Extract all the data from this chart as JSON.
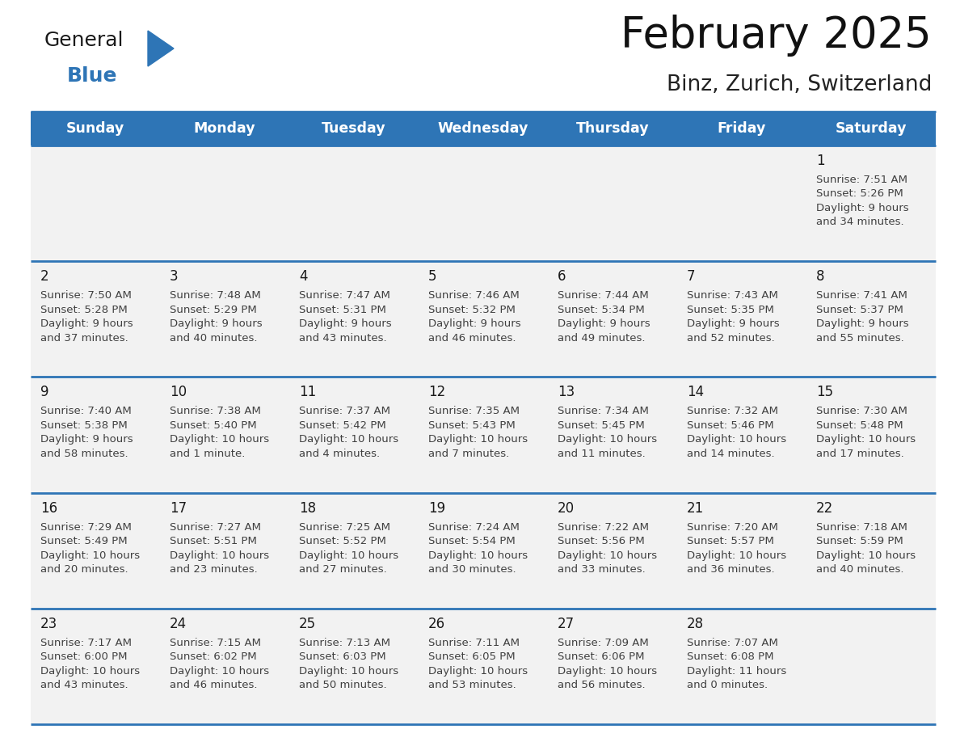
{
  "title": "February 2025",
  "subtitle": "Binz, Zurich, Switzerland",
  "header_bg": "#2e75b6",
  "header_text_color": "#ffffff",
  "days_of_week": [
    "Sunday",
    "Monday",
    "Tuesday",
    "Wednesday",
    "Thursday",
    "Friday",
    "Saturday"
  ],
  "cell_bg_light": "#f2f2f2",
  "cell_bg_white": "#ffffff",
  "cell_border_color": "#2e75b6",
  "text_color": "#404040",
  "logo_general_color": "#1a1a1a",
  "logo_blue_color": "#2e75b6",
  "calendar_data": [
    [
      null,
      null,
      null,
      null,
      null,
      null,
      1
    ],
    [
      2,
      3,
      4,
      5,
      6,
      7,
      8
    ],
    [
      9,
      10,
      11,
      12,
      13,
      14,
      15
    ],
    [
      16,
      17,
      18,
      19,
      20,
      21,
      22
    ],
    [
      23,
      24,
      25,
      26,
      27,
      28,
      null
    ]
  ],
  "day_info": {
    "1": {
      "sunrise": "7:51 AM",
      "sunset": "5:26 PM",
      "daylight_line1": "Daylight: 9 hours",
      "daylight_line2": "and 34 minutes."
    },
    "2": {
      "sunrise": "7:50 AM",
      "sunset": "5:28 PM",
      "daylight_line1": "Daylight: 9 hours",
      "daylight_line2": "and 37 minutes."
    },
    "3": {
      "sunrise": "7:48 AM",
      "sunset": "5:29 PM",
      "daylight_line1": "Daylight: 9 hours",
      "daylight_line2": "and 40 minutes."
    },
    "4": {
      "sunrise": "7:47 AM",
      "sunset": "5:31 PM",
      "daylight_line1": "Daylight: 9 hours",
      "daylight_line2": "and 43 minutes."
    },
    "5": {
      "sunrise": "7:46 AM",
      "sunset": "5:32 PM",
      "daylight_line1": "Daylight: 9 hours",
      "daylight_line2": "and 46 minutes."
    },
    "6": {
      "sunrise": "7:44 AM",
      "sunset": "5:34 PM",
      "daylight_line1": "Daylight: 9 hours",
      "daylight_line2": "and 49 minutes."
    },
    "7": {
      "sunrise": "7:43 AM",
      "sunset": "5:35 PM",
      "daylight_line1": "Daylight: 9 hours",
      "daylight_line2": "and 52 minutes."
    },
    "8": {
      "sunrise": "7:41 AM",
      "sunset": "5:37 PM",
      "daylight_line1": "Daylight: 9 hours",
      "daylight_line2": "and 55 minutes."
    },
    "9": {
      "sunrise": "7:40 AM",
      "sunset": "5:38 PM",
      "daylight_line1": "Daylight: 9 hours",
      "daylight_line2": "and 58 minutes."
    },
    "10": {
      "sunrise": "7:38 AM",
      "sunset": "5:40 PM",
      "daylight_line1": "Daylight: 10 hours",
      "daylight_line2": "and 1 minute."
    },
    "11": {
      "sunrise": "7:37 AM",
      "sunset": "5:42 PM",
      "daylight_line1": "Daylight: 10 hours",
      "daylight_line2": "and 4 minutes."
    },
    "12": {
      "sunrise": "7:35 AM",
      "sunset": "5:43 PM",
      "daylight_line1": "Daylight: 10 hours",
      "daylight_line2": "and 7 minutes."
    },
    "13": {
      "sunrise": "7:34 AM",
      "sunset": "5:45 PM",
      "daylight_line1": "Daylight: 10 hours",
      "daylight_line2": "and 11 minutes."
    },
    "14": {
      "sunrise": "7:32 AM",
      "sunset": "5:46 PM",
      "daylight_line1": "Daylight: 10 hours",
      "daylight_line2": "and 14 minutes."
    },
    "15": {
      "sunrise": "7:30 AM",
      "sunset": "5:48 PM",
      "daylight_line1": "Daylight: 10 hours",
      "daylight_line2": "and 17 minutes."
    },
    "16": {
      "sunrise": "7:29 AM",
      "sunset": "5:49 PM",
      "daylight_line1": "Daylight: 10 hours",
      "daylight_line2": "and 20 minutes."
    },
    "17": {
      "sunrise": "7:27 AM",
      "sunset": "5:51 PM",
      "daylight_line1": "Daylight: 10 hours",
      "daylight_line2": "and 23 minutes."
    },
    "18": {
      "sunrise": "7:25 AM",
      "sunset": "5:52 PM",
      "daylight_line1": "Daylight: 10 hours",
      "daylight_line2": "and 27 minutes."
    },
    "19": {
      "sunrise": "7:24 AM",
      "sunset": "5:54 PM",
      "daylight_line1": "Daylight: 10 hours",
      "daylight_line2": "and 30 minutes."
    },
    "20": {
      "sunrise": "7:22 AM",
      "sunset": "5:56 PM",
      "daylight_line1": "Daylight: 10 hours",
      "daylight_line2": "and 33 minutes."
    },
    "21": {
      "sunrise": "7:20 AM",
      "sunset": "5:57 PM",
      "daylight_line1": "Daylight: 10 hours",
      "daylight_line2": "and 36 minutes."
    },
    "22": {
      "sunrise": "7:18 AM",
      "sunset": "5:59 PM",
      "daylight_line1": "Daylight: 10 hours",
      "daylight_line2": "and 40 minutes."
    },
    "23": {
      "sunrise": "7:17 AM",
      "sunset": "6:00 PM",
      "daylight_line1": "Daylight: 10 hours",
      "daylight_line2": "and 43 minutes."
    },
    "24": {
      "sunrise": "7:15 AM",
      "sunset": "6:02 PM",
      "daylight_line1": "Daylight: 10 hours",
      "daylight_line2": "and 46 minutes."
    },
    "25": {
      "sunrise": "7:13 AM",
      "sunset": "6:03 PM",
      "daylight_line1": "Daylight: 10 hours",
      "daylight_line2": "and 50 minutes."
    },
    "26": {
      "sunrise": "7:11 AM",
      "sunset": "6:05 PM",
      "daylight_line1": "Daylight: 10 hours",
      "daylight_line2": "and 53 minutes."
    },
    "27": {
      "sunrise": "7:09 AM",
      "sunset": "6:06 PM",
      "daylight_line1": "Daylight: 10 hours",
      "daylight_line2": "and 56 minutes."
    },
    "28": {
      "sunrise": "7:07 AM",
      "sunset": "6:08 PM",
      "daylight_line1": "Daylight: 11 hours",
      "daylight_line2": "and 0 minutes."
    }
  }
}
